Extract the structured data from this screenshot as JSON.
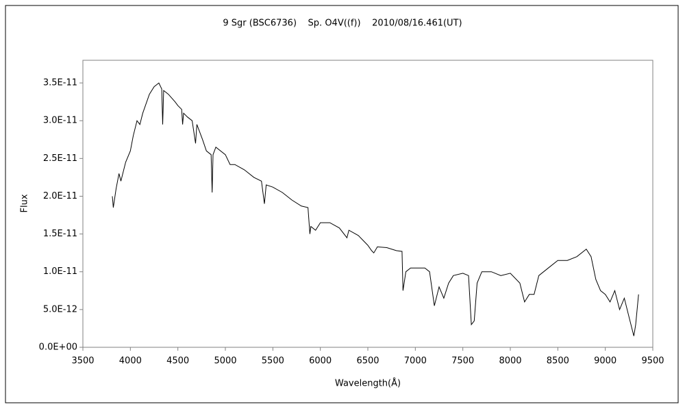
{
  "chart_data": {
    "type": "line",
    "title": "9 Sgr (BSC6736)    Sp. O4V((f))    2010/08/16.461(UT)",
    "x_label": "Wavelength(Å)",
    "y_label": "Flux",
    "color": "#000000",
    "x": [
      3810,
      3820,
      3850,
      3880,
      3900,
      3950,
      4000,
      4030,
      4070,
      4100,
      4130,
      4200,
      4250,
      4300,
      4330,
      4340,
      4350,
      4400,
      4470,
      4500,
      4540,
      4550,
      4560,
      4600,
      4650,
      4686,
      4700,
      4760,
      4800,
      4850,
      4861,
      4870,
      4900,
      5000,
      5050,
      5100,
      5200,
      5300,
      5380,
      5411,
      5430,
      5500,
      5600,
      5700,
      5800,
      5870,
      5890,
      5900,
      5950,
      6000,
      6100,
      6200,
      6280,
      6300,
      6400,
      6500,
      6540,
      6563,
      6600,
      6700,
      6800,
      6860,
      6870,
      6900,
      6950,
      7000,
      7100,
      7150,
      7200,
      7250,
      7300,
      7350,
      7400,
      7500,
      7560,
      7590,
      7620,
      7650,
      7700,
      7800,
      7900,
      8000,
      8100,
      8150,
      8200,
      8250,
      8300,
      8400,
      8500,
      8600,
      8700,
      8800,
      8850,
      8900,
      8950,
      9000,
      9050,
      9100,
      9150,
      9200,
      9250,
      9300,
      9320,
      9350
    ],
    "values": [
      2e-11,
      1.85e-11,
      2.1e-11,
      2.3e-11,
      2.2e-11,
      2.45e-11,
      2.6e-11,
      2.8e-11,
      3e-11,
      2.95e-11,
      3.1e-11,
      3.35e-11,
      3.45e-11,
      3.5e-11,
      3.42e-11,
      2.95e-11,
      3.4e-11,
      3.35e-11,
      3.25e-11,
      3.2e-11,
      3.15e-11,
      2.95e-11,
      3.1e-11,
      3.05e-11,
      3e-11,
      2.7e-11,
      2.95e-11,
      2.75e-11,
      2.6e-11,
      2.55e-11,
      2.05e-11,
      2.55e-11,
      2.65e-11,
      2.55e-11,
      2.42e-11,
      2.42e-11,
      2.35e-11,
      2.25e-11,
      2.2e-11,
      1.9e-11,
      2.15e-11,
      2.12e-11,
      2.05e-11,
      1.95e-11,
      1.87e-11,
      1.85e-11,
      1.5e-11,
      1.6e-11,
      1.55e-11,
      1.65e-11,
      1.65e-11,
      1.58e-11,
      1.45e-11,
      1.55e-11,
      1.48e-11,
      1.35e-11,
      1.28e-11,
      1.25e-11,
      1.33e-11,
      1.32e-11,
      1.28e-11,
      1.27e-11,
      7.5e-12,
      1e-11,
      1.05e-11,
      1.05e-11,
      1.05e-11,
      1e-11,
      5.5e-12,
      8e-12,
      6.5e-12,
      8.5e-12,
      9.5e-12,
      9.8e-12,
      9.5e-12,
      3e-12,
      3.5e-12,
      8.5e-12,
      1e-11,
      1e-11,
      9.5e-12,
      9.8e-12,
      8.5e-12,
      6e-12,
      7e-12,
      7e-12,
      9.5e-12,
      1.05e-11,
      1.15e-11,
      1.15e-11,
      1.2e-11,
      1.3e-11,
      1.2e-11,
      9e-12,
      7.5e-12,
      7e-12,
      6e-12,
      7.5e-12,
      5e-12,
      6.5e-12,
      4e-12,
      1.5e-12,
      3e-12,
      7e-12
    ],
    "xlim": [
      3500,
      9500
    ],
    "xticks": [
      3500,
      4000,
      4500,
      5000,
      5500,
      6000,
      6500,
      7000,
      7500,
      8000,
      8500,
      9000,
      9500
    ],
    "ylim": [
      0,
      3.8e-11
    ],
    "yticks": [
      {
        "value": 0,
        "label": "0.0E+00"
      },
      {
        "value": 5e-12,
        "label": "5.0E-12"
      },
      {
        "value": 1e-11,
        "label": "1.0E-11"
      },
      {
        "value": 1.5e-11,
        "label": "1.5E-11"
      },
      {
        "value": 2e-11,
        "label": "2.0E-11"
      },
      {
        "value": 2.5e-11,
        "label": "2.5E-11"
      },
      {
        "value": 3e-11,
        "label": "3.0E-11"
      },
      {
        "value": 3.5e-11,
        "label": "3.5E-11"
      }
    ],
    "grid": false
  }
}
